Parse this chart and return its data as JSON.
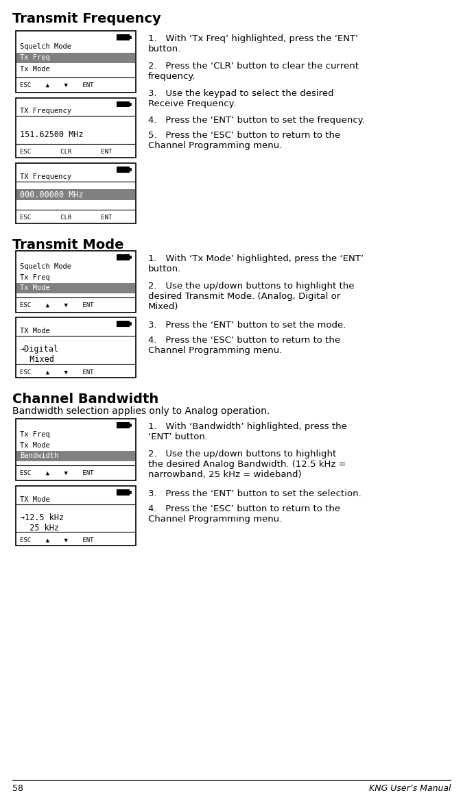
{
  "bg_color": "#ffffff",
  "text_color": "#000000",
  "highlight_color": "#808080",
  "highlight_text_color": "#ffffff",
  "border_color": "#000000",
  "page_number": "58",
  "manual_title": "KNG User’s Manual",
  "section1_title": "Transmit Frequency",
  "screen1a": {
    "battery_icon": true,
    "lines": [
      "Squelch Mode",
      "Tx Freq",
      "Tx Mode"
    ],
    "highlighted": 1,
    "footer": "ESC    ▲    ▼    ENT"
  },
  "screen1b": {
    "battery_icon": true,
    "title": "TX Frequency",
    "body": "151.62500 MHz",
    "footer": "ESC        CLR        ENT"
  },
  "screen1c": {
    "battery_icon": true,
    "title": "TX Frequency",
    "body": "000.00000 MHz",
    "body_highlighted": true,
    "footer": "ESC        CLR        ENT"
  },
  "section1_steps": [
    "1.   With ‘Tx Freq’ highlighted, press the ‘ENT’\nbutton.",
    "2.   Press the ‘CLR’ button to clear the current\nfrequency.",
    "3.   Use the keypad to select the desired\nReceive Frequency.",
    "4.   Press the ‘ENT’ button to set the frequency.",
    "5.   Press the ‘ESC’ button to return to the\nChannel Programming menu."
  ],
  "section2_title": "Transmit Mode",
  "screen2a": {
    "battery_icon": true,
    "lines": [
      "Squelch Mode",
      "Tx Freq",
      "Tx Mode"
    ],
    "highlighted": 2,
    "footer": "ESC    ▲    ▼    ENT"
  },
  "screen2b": {
    "battery_icon": true,
    "title": "TX Mode",
    "body_lines": [
      "→Digital",
      "  Mixed"
    ],
    "footer": "ESC    ▲    ▼    ENT"
  },
  "section2_steps": [
    "1.   With ‘Tx Mode’ highlighted, press the ‘ENT’\nbutton.",
    "2.   Use the up/down buttons to highlight the\ndesired Transmit Mode. (Analog, Digital or\nMixed)",
    "3.   Press the ‘ENT’ button to set the mode.",
    "4.   Press the ‘ESC’ button to return to the\nChannel Programming menu."
  ],
  "section3_title": "Channel Bandwidth",
  "section3_subtitle": "Bandwidth selection applies only to Analog operation.",
  "screen3a": {
    "battery_icon": true,
    "lines": [
      "Tx Freq",
      "Tx Mode",
      "Bandwidth"
    ],
    "highlighted": 2,
    "footer": "ESC    ▲    ▼    ENT"
  },
  "screen3b": {
    "battery_icon": true,
    "title": "TX Mode",
    "body_lines": [
      "→12.5 kHz",
      "  25 kHz"
    ],
    "footer": "ESC    ▲    ▼    ENT"
  },
  "section3_steps": [
    "1.   With ‘Bandwidth’ highlighted, press the\n‘ENT’ button.",
    "2.   Use the up/down buttons to highlight\nthe desired Analog Bandwidth. (12.5 kHz =\nnarrowband, 25 kHz = wideband)",
    "3.   Press the ‘ENT’ button to set the selection.",
    "4.   Press the ‘ESC’ button to return to the\nChannel Programming menu."
  ]
}
